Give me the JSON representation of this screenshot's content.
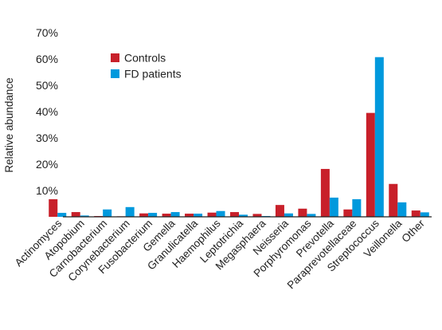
{
  "chart_data": {
    "type": "bar",
    "ylabel": "Relative abundance",
    "ylim": [
      0,
      70
    ],
    "yticks": [
      "10%",
      "20%",
      "30%",
      "40%",
      "50%",
      "60%",
      "70%"
    ],
    "y_tick_values": [
      10,
      20,
      30,
      40,
      50,
      60,
      70
    ],
    "grid": false,
    "legend_position": "upper-left",
    "categories": [
      "Actinomyces",
      "Atopobium",
      "Carnobacterium",
      "Corynebacterium",
      "Fusobacterium",
      "Gemella",
      "Granulicatella",
      "Haemophilus",
      "Leptotrichia",
      "Megasphaera",
      "Neisseria",
      "Porphyromonas",
      "Prevotella",
      "Paraprevotellaceae",
      "Streptococcus",
      "Veillonella",
      "Other"
    ],
    "series": [
      {
        "name": "Controls",
        "color": "#c8202a",
        "values": [
          6.7,
          1.8,
          0.3,
          0.2,
          1.3,
          1.2,
          1.2,
          1.6,
          1.8,
          1.1,
          4.5,
          3.1,
          18.2,
          2.8,
          39.5,
          12.5,
          2.4
        ]
      },
      {
        "name": "FD patients",
        "color": "#0099dd",
        "values": [
          1.5,
          0.5,
          2.8,
          3.7,
          1.5,
          1.8,
          1.2,
          2.2,
          0.8,
          0.3,
          1.3,
          1.1,
          7.3,
          6.7,
          60.7,
          5.5,
          1.7
        ]
      }
    ]
  }
}
